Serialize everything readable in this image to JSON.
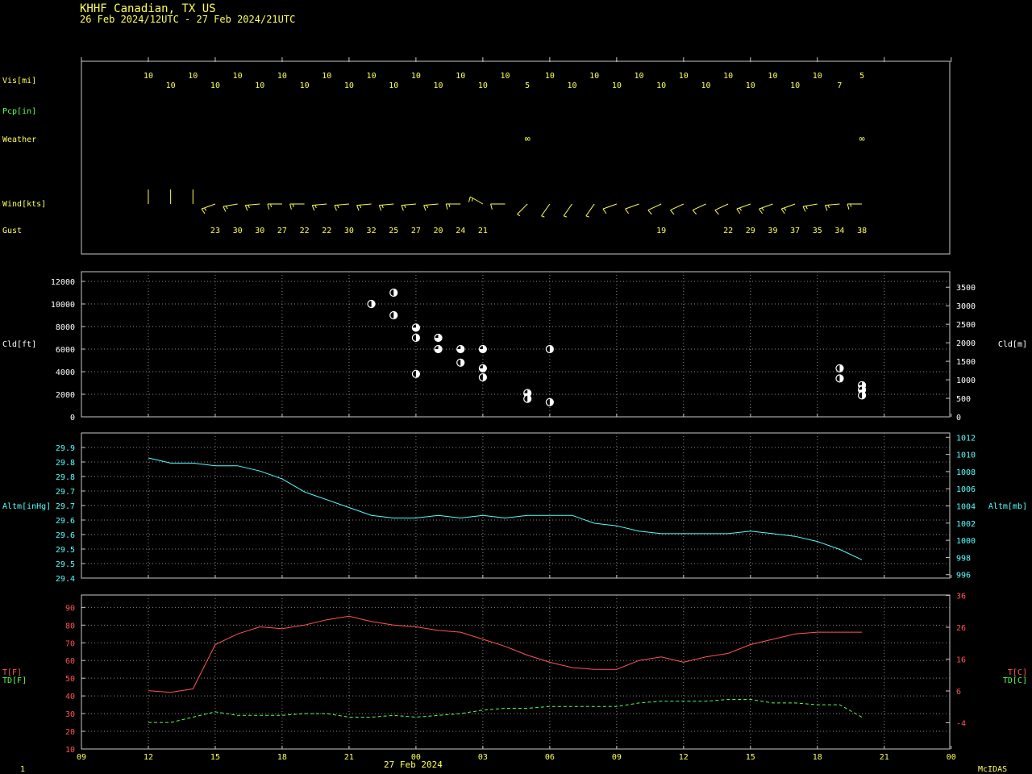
{
  "header": {
    "station": "KHHF  Canadian, TX US",
    "period": "26 Feb 2024/12UTC - 27 Feb 2024/21UTC"
  },
  "footer": {
    "page_number": "1",
    "date_label": "27 Feb 2024",
    "brand": "McIDAS"
  },
  "colors": {
    "yellow": "#ffff55",
    "green": "#55ff55",
    "cyan": "#55ffff",
    "red": "#ff5555",
    "white": "#ffffff",
    "frame": "#c8c8c8",
    "grid": "#8a8a8a"
  },
  "time_axis": {
    "ticks": [
      {
        "h": 9,
        "label": "09"
      },
      {
        "h": 12,
        "label": "12"
      },
      {
        "h": 15,
        "label": "15"
      },
      {
        "h": 18,
        "label": "18"
      },
      {
        "h": 21,
        "label": "21"
      },
      {
        "h": 24,
        "label": "00"
      },
      {
        "h": 27,
        "label": "03"
      },
      {
        "h": 30,
        "label": "06"
      },
      {
        "h": 33,
        "label": "09"
      },
      {
        "h": 36,
        "label": "12"
      },
      {
        "h": 39,
        "label": "15"
      },
      {
        "h": 42,
        "label": "18"
      },
      {
        "h": 45,
        "label": "21"
      },
      {
        "h": 48,
        "label": "00"
      }
    ]
  },
  "labels": {
    "vis": "Vis[mi]",
    "pcp": "Pcp[in]",
    "weather": "Weather",
    "wind": "Wind[kts]",
    "gust": "Gust",
    "cld_ft": "Cld[ft]",
    "cld_m": "Cld[m]",
    "altm_inhg": "Altm[inHg]",
    "altm_mb": "Altm[mb]",
    "t_f": "T[F]",
    "td_f": "TD[F]",
    "t_c": "T[C]",
    "td_c": "TD[C]"
  },
  "chart_data": [
    {
      "type": "table",
      "name": "surface_obs",
      "hours": [
        12,
        13,
        14,
        15,
        16,
        17,
        18,
        19,
        20,
        21,
        22,
        23,
        24,
        25,
        26,
        27,
        28,
        29,
        30,
        31,
        32,
        33,
        34,
        35,
        36,
        37,
        38,
        39,
        40,
        41,
        42,
        43
      ],
      "visibility": [
        "10",
        "10",
        "10",
        "10",
        "10",
        "10",
        "10",
        "10",
        "10",
        "10",
        "10",
        "10",
        "10",
        "10",
        "10",
        "10",
        "10",
        "5",
        "10",
        "10",
        "10",
        "10",
        "10",
        "10",
        "10",
        "10",
        "10",
        "10",
        "10",
        "10",
        "10",
        "7",
        "5"
      ],
      "visibility_hours": [
        12,
        13,
        14,
        15,
        16,
        17,
        18,
        19,
        20,
        21,
        22,
        23,
        24,
        25,
        26,
        27,
        28,
        29,
        30,
        31,
        32,
        33,
        34,
        35,
        36,
        37,
        38,
        39,
        40,
        41,
        42,
        43,
        44
      ],
      "weather": [
        {
          "h": 29,
          "symbol": "∞"
        },
        {
          "h": 44,
          "symbol": "∞"
        }
      ],
      "wind": [
        {
          "h": 12,
          "dir": 180,
          "spd": 0
        },
        {
          "h": 13,
          "dir": 180,
          "spd": 0
        },
        {
          "h": 14,
          "dir": 180,
          "spd": 0
        },
        {
          "h": 15,
          "dir": 250,
          "spd": 15
        },
        {
          "h": 16,
          "dir": 260,
          "spd": 15
        },
        {
          "h": 17,
          "dir": 265,
          "spd": 15
        },
        {
          "h": 18,
          "dir": 270,
          "spd": 15
        },
        {
          "h": 19,
          "dir": 270,
          "spd": 15
        },
        {
          "h": 20,
          "dir": 265,
          "spd": 15
        },
        {
          "h": 21,
          "dir": 265,
          "spd": 15
        },
        {
          "h": 22,
          "dir": 265,
          "spd": 15
        },
        {
          "h": 23,
          "dir": 265,
          "spd": 15
        },
        {
          "h": 24,
          "dir": 265,
          "spd": 15
        },
        {
          "h": 25,
          "dir": 265,
          "spd": 15
        },
        {
          "h": 26,
          "dir": 270,
          "spd": 15
        },
        {
          "h": 27,
          "dir": 300,
          "spd": 15
        },
        {
          "h": 28,
          "dir": 270,
          "spd": 10
        },
        {
          "h": 29,
          "dir": 225,
          "spd": 5
        },
        {
          "h": 30,
          "dir": 215,
          "spd": 5
        },
        {
          "h": 31,
          "dir": 215,
          "spd": 5
        },
        {
          "h": 32,
          "dir": 215,
          "spd": 5
        },
        {
          "h": 33,
          "dir": 250,
          "spd": 10
        },
        {
          "h": 34,
          "dir": 250,
          "spd": 10
        },
        {
          "h": 35,
          "dir": 245,
          "spd": 10
        },
        {
          "h": 36,
          "dir": 245,
          "spd": 10
        },
        {
          "h": 37,
          "dir": 245,
          "spd": 10
        },
        {
          "h": 38,
          "dir": 245,
          "spd": 10
        },
        {
          "h": 39,
          "dir": 250,
          "spd": 15
        },
        {
          "h": 40,
          "dir": 250,
          "spd": 15
        },
        {
          "h": 41,
          "dir": 250,
          "spd": 15
        },
        {
          "h": 42,
          "dir": 260,
          "spd": 15
        },
        {
          "h": 43,
          "dir": 265,
          "spd": 15
        },
        {
          "h": 44,
          "dir": 270,
          "spd": 15
        }
      ],
      "gust": [
        {
          "h": 15,
          "v": "23"
        },
        {
          "h": 16,
          "v": "30"
        },
        {
          "h": 17,
          "v": "30"
        },
        {
          "h": 18,
          "v": "27"
        },
        {
          "h": 19,
          "v": "22"
        },
        {
          "h": 20,
          "v": "22"
        },
        {
          "h": 21,
          "v": "30"
        },
        {
          "h": 22,
          "v": "32"
        },
        {
          "h": 23,
          "v": "25"
        },
        {
          "h": 24,
          "v": "27"
        },
        {
          "h": 25,
          "v": "20"
        },
        {
          "h": 26,
          "v": "24"
        },
        {
          "h": 27,
          "v": "21"
        },
        {
          "h": 35,
          "v": "19"
        },
        {
          "h": 38,
          "v": "22"
        },
        {
          "h": 39,
          "v": "29"
        },
        {
          "h": 40,
          "v": "39"
        },
        {
          "h": 41,
          "v": "37"
        },
        {
          "h": 42,
          "v": "35"
        },
        {
          "h": 43,
          "v": "34"
        },
        {
          "h": 44,
          "v": "38"
        }
      ]
    },
    {
      "type": "scatter",
      "name": "cloud_height",
      "ylim_ft": [
        0,
        12000
      ],
      "yticks_ft": [
        0,
        2000,
        4000,
        6000,
        8000,
        10000,
        12000
      ],
      "ylim_m": [
        0,
        3658
      ],
      "yticks_m": [
        0,
        500,
        1000,
        1500,
        2000,
        2500,
        3000,
        3500
      ],
      "points": [
        {
          "h": 22,
          "ft": 10000,
          "cover": "half"
        },
        {
          "h": 23,
          "ft": 11000,
          "cover": "half"
        },
        {
          "h": 23,
          "ft": 9000,
          "cover": "half"
        },
        {
          "h": 24,
          "ft": 7900,
          "cover": "mostly"
        },
        {
          "h": 24,
          "ft": 7000,
          "cover": "half"
        },
        {
          "h": 24,
          "ft": 3800,
          "cover": "half"
        },
        {
          "h": 25,
          "ft": 7000,
          "cover": "mostly"
        },
        {
          "h": 25,
          "ft": 6000,
          "cover": "mostly"
        },
        {
          "h": 26,
          "ft": 6000,
          "cover": "mostly"
        },
        {
          "h": 26,
          "ft": 4800,
          "cover": "half"
        },
        {
          "h": 27,
          "ft": 6000,
          "cover": "mostly"
        },
        {
          "h": 27,
          "ft": 4300,
          "cover": "mostly"
        },
        {
          "h": 27,
          "ft": 3500,
          "cover": "half"
        },
        {
          "h": 29,
          "ft": 2100,
          "cover": "mostly"
        },
        {
          "h": 29,
          "ft": 1600,
          "cover": "half"
        },
        {
          "h": 30,
          "ft": 6000,
          "cover": "half"
        },
        {
          "h": 30,
          "ft": 1300,
          "cover": "half"
        },
        {
          "h": 43,
          "ft": 4300,
          "cover": "half"
        },
        {
          "h": 43,
          "ft": 3400,
          "cover": "half"
        },
        {
          "h": 44,
          "ft": 2800,
          "cover": "mostly"
        },
        {
          "h": 44,
          "ft": 2400,
          "cover": "mostly"
        },
        {
          "h": 44,
          "ft": 1900,
          "cover": "half"
        }
      ]
    },
    {
      "type": "line",
      "name": "altimeter",
      "ylim_inhg": [
        29.4,
        29.9
      ],
      "yticks_inhg": [
        "29.4",
        "29.5",
        "29.5",
        "29.6",
        "29.6",
        "29.7",
        "29.7",
        "29.8",
        "29.8",
        "29.9"
      ],
      "ylim_mb": [
        995.6,
        1012.5
      ],
      "yticks_mb": [
        996,
        998,
        1000,
        1002,
        1004,
        1006,
        1008,
        1010,
        1012
      ],
      "series": [
        {
          "x": [
            12,
            13,
            14,
            15,
            16,
            17,
            18,
            19,
            20,
            21,
            22,
            23,
            24,
            25,
            26,
            27,
            28,
            29,
            30,
            31,
            32,
            33,
            34,
            35,
            36,
            37,
            38,
            39,
            40,
            41,
            42,
            43,
            44
          ],
          "y": [
            29.86,
            29.84,
            29.84,
            29.83,
            29.83,
            29.81,
            29.78,
            29.73,
            29.7,
            29.67,
            29.64,
            29.63,
            29.63,
            29.64,
            29.63,
            29.64,
            29.63,
            29.64,
            29.64,
            29.64,
            29.61,
            29.6,
            29.58,
            29.57,
            29.57,
            29.57,
            29.57,
            29.58,
            29.57,
            29.56,
            29.54,
            29.51,
            29.47
          ]
        }
      ]
    },
    {
      "type": "line",
      "name": "temperature_dewpoint",
      "ylim_f": [
        10,
        97
      ],
      "yticks_f": [
        10,
        20,
        30,
        40,
        50,
        60,
        70,
        80,
        90
      ],
      "ylim_c": [
        -12.2,
        36.1
      ],
      "yticks_c": [
        "-4",
        "6",
        "16",
        "26",
        "36"
      ],
      "series": [
        {
          "x": [
            12,
            13,
            14,
            15,
            16,
            17,
            18,
            19,
            20,
            21,
            22,
            23,
            24,
            25,
            26,
            27,
            28,
            29,
            30,
            31,
            32,
            33,
            34,
            35,
            36,
            37,
            38,
            39,
            40,
            41,
            42,
            43,
            44
          ],
          "y": [
            43,
            42,
            44,
            69,
            75,
            79,
            78,
            80,
            83,
            85,
            82,
            80,
            79,
            77,
            76,
            72,
            68,
            63,
            59,
            56,
            55,
            55,
            60,
            62,
            59,
            62,
            64,
            69,
            72,
            75,
            76,
            76,
            76
          ]
        },
        {
          "x": [
            12,
            13,
            14,
            15,
            16,
            17,
            18,
            19,
            20,
            21,
            22,
            23,
            24,
            25,
            26,
            27,
            28,
            29,
            30,
            31,
            32,
            33,
            34,
            35,
            36,
            37,
            38,
            39,
            40,
            41,
            42,
            43,
            44
          ],
          "y": [
            25,
            25,
            28,
            31,
            29,
            29,
            29,
            30,
            30,
            28,
            28,
            29,
            28,
            29,
            30,
            32,
            33,
            33,
            34,
            34,
            34,
            34,
            36,
            37,
            37,
            37,
            38,
            38,
            36,
            36,
            35,
            35,
            28
          ]
        }
      ]
    }
  ]
}
